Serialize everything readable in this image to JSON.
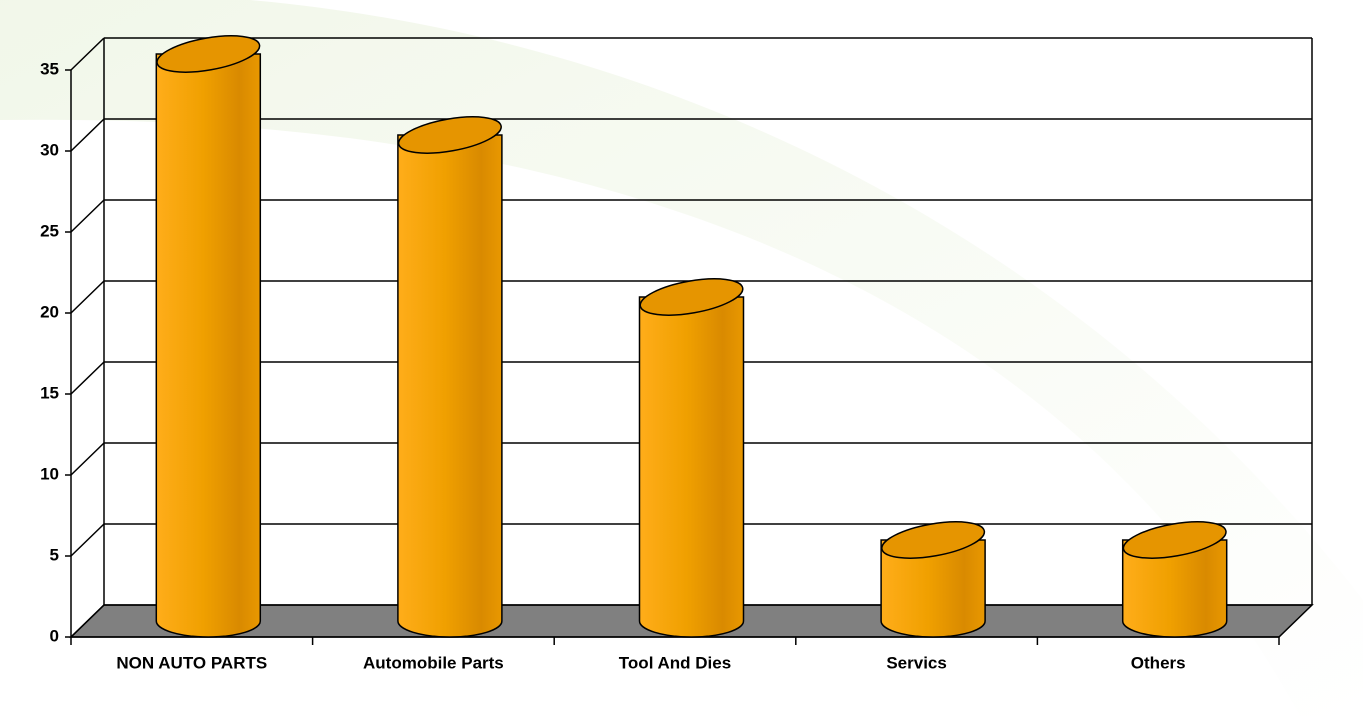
{
  "chart_data": {
    "type": "bar",
    "categories": [
      "NON AUTO PARTS",
      "Automobile Parts",
      "Tool And Dies",
      "Servics",
      "Others"
    ],
    "values": [
      35,
      30,
      20,
      5,
      5
    ],
    "color": "#f5a000",
    "ylim": [
      0,
      35
    ],
    "yticks": [
      0,
      5,
      10,
      15,
      20,
      25,
      30,
      35
    ],
    "grid": true
  }
}
